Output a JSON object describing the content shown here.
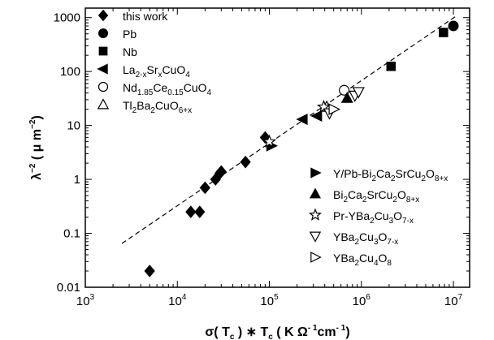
{
  "chart_data": {
    "type": "scatter",
    "xlabel": "σ(T_c) * T_c (KΩ^-1 cm^-1)",
    "ylabel": "λ^-2 (μm^-2)",
    "x_scale": "log",
    "y_scale": "log",
    "xlim": [
      1000,
      15000000
    ],
    "ylim": [
      0.01,
      1500
    ],
    "x_ticks": [
      1000,
      10000,
      100000,
      1000000,
      10000000
    ],
    "y_ticks": [
      0.01,
      0.1,
      1,
      10,
      100,
      1000
    ],
    "x_tick_labels": [
      {
        "base": "10",
        "exp": "3"
      },
      {
        "base": "10",
        "exp": "4"
      },
      {
        "base": "10",
        "exp": "5"
      },
      {
        "base": "10",
        "exp": "6"
      },
      {
        "base": "10",
        "exp": "7"
      }
    ],
    "y_tick_labels": [
      "0.01",
      "0.1",
      "1",
      "10",
      "100",
      "1000"
    ],
    "x_axis_title": [
      {
        "t": "σ( T"
      },
      {
        "t": "c",
        "s": "sub"
      },
      {
        "t": " ) ∗ T"
      },
      {
        "t": "c",
        "s": "sub"
      },
      {
        "t": "  ( K Ω"
      },
      {
        "t": "- 1",
        "s": "sup"
      },
      {
        "t": "cm"
      },
      {
        "t": "- 1",
        "s": "sup"
      },
      {
        "t": ")"
      }
    ],
    "y_axis_title": [
      {
        "t": "λ"
      },
      {
        "t": "−2",
        "s": "sup"
      },
      {
        "t": " ( μ m"
      },
      {
        "t": "−2",
        "s": "sup"
      },
      {
        "t": ")"
      }
    ],
    "fit_line": {
      "x": [
        2500,
        11000000
      ],
      "y": [
        0.065,
        1100
      ],
      "style": "dashed"
    },
    "legend_left": [
      {
        "marker": "diamond",
        "parts": [
          {
            "t": "this work"
          }
        ]
      },
      {
        "marker": "circle-filled",
        "parts": [
          {
            "t": "Pb"
          }
        ]
      },
      {
        "marker": "square-filled",
        "parts": [
          {
            "t": "Nb"
          }
        ]
      },
      {
        "marker": "tri-left-filled",
        "parts": [
          {
            "t": "La"
          },
          {
            "t": "2-x",
            "s": "sub"
          },
          {
            "t": "Sr"
          },
          {
            "t": "x",
            "s": "sub"
          },
          {
            "t": "CuO"
          },
          {
            "t": "4",
            "s": "sub"
          }
        ]
      },
      {
        "marker": "circle-open",
        "parts": [
          {
            "t": "Nd"
          },
          {
            "t": "1.85",
            "s": "sub"
          },
          {
            "t": "Ce"
          },
          {
            "t": "0.15",
            "s": "sub"
          },
          {
            "t": "CuO"
          },
          {
            "t": "4",
            "s": "sub"
          }
        ]
      },
      {
        "marker": "tri-up-open",
        "parts": [
          {
            "t": "Tl"
          },
          {
            "t": "2",
            "s": "sub"
          },
          {
            "t": "Ba"
          },
          {
            "t": "2",
            "s": "sub"
          },
          {
            "t": "CuO"
          },
          {
            "t": "6+x",
            "s": "sub"
          }
        ]
      }
    ],
    "legend_right": [
      {
        "marker": "tri-right-filled",
        "parts": [
          {
            "t": "Y/Pb-Bi"
          },
          {
            "t": "2",
            "s": "sub"
          },
          {
            "t": "Ca"
          },
          {
            "t": "2",
            "s": "sub"
          },
          {
            "t": "SrCu"
          },
          {
            "t": "2",
            "s": "sub"
          },
          {
            "t": "O"
          },
          {
            "t": "8+x",
            "s": "sub"
          }
        ]
      },
      {
        "marker": "tri-up-filled",
        "parts": [
          {
            "t": "Bi"
          },
          {
            "t": "2",
            "s": "sub"
          },
          {
            "t": "Ca"
          },
          {
            "t": "2",
            "s": "sub"
          },
          {
            "t": "SrCu"
          },
          {
            "t": "2",
            "s": "sub"
          },
          {
            "t": "O"
          },
          {
            "t": "8+x",
            "s": "sub"
          }
        ]
      },
      {
        "marker": "star-open",
        "parts": [
          {
            "t": "Pr-YBa"
          },
          {
            "t": "2",
            "s": "sub"
          },
          {
            "t": "Cu"
          },
          {
            "t": "3",
            "s": "sub"
          },
          {
            "t": "O"
          },
          {
            "t": "7-x",
            "s": "sub"
          }
        ]
      },
      {
        "marker": "tri-down-open",
        "parts": [
          {
            "t": "YBa"
          },
          {
            "t": "2",
            "s": "sub"
          },
          {
            "t": "Cu"
          },
          {
            "t": "3",
            "s": "sub"
          },
          {
            "t": "O"
          },
          {
            "t": "7-x",
            "s": "sub"
          }
        ]
      },
      {
        "marker": "tri-right-open",
        "parts": [
          {
            "t": "YBa"
          },
          {
            "t": "2",
            "s": "sub"
          },
          {
            "t": "Cu"
          },
          {
            "t": "4",
            "s": "sub"
          },
          {
            "t": "O"
          },
          {
            "t": "8",
            "s": "sub"
          }
        ]
      }
    ],
    "series": [
      {
        "name": "this work",
        "marker": "diamond",
        "points": [
          [
            5000,
            0.02
          ],
          [
            14000,
            0.25
          ],
          [
            17500,
            0.25
          ],
          [
            20000,
            0.7
          ],
          [
            26000,
            1.0
          ],
          [
            29000,
            1.3
          ],
          [
            30000,
            1.4
          ],
          [
            55000,
            2.1
          ],
          [
            90000,
            6.0
          ]
        ]
      },
      {
        "name": "Pb",
        "marker": "circle-filled",
        "points": [
          [
            10000000,
            700
          ]
        ]
      },
      {
        "name": "Nb",
        "marker": "square-filled",
        "points": [
          [
            2100000,
            125
          ],
          [
            7800000,
            530
          ]
        ]
      },
      {
        "name": "La2-xSrxCuO4",
        "marker": "tri-left-filled",
        "points": [
          [
            230000,
            13
          ],
          [
            330000,
            15
          ]
        ]
      },
      {
        "name": "Nd1.85Ce0.15CuO4",
        "marker": "circle-open",
        "points": [
          [
            650000,
            45
          ]
        ]
      },
      {
        "name": "Tl2Ba2CuO6+x",
        "marker": "tri-up-open",
        "points": [
          [
            420000,
            22
          ]
        ]
      },
      {
        "name": "Y/Pb-Bi2Ca2SrCu2O8+x",
        "marker": "tri-right-filled",
        "points": [
          [
            105000,
            4.2
          ]
        ]
      },
      {
        "name": "Bi2Ca2SrCu2O8+x",
        "marker": "tri-up-filled",
        "points": [
          [
            700000,
            32
          ]
        ]
      },
      {
        "name": "Pr-YBa2Cu3O7-x",
        "marker": "star-open",
        "points": [
          [
            100000,
            5.0
          ],
          [
            390000,
            22
          ]
        ]
      },
      {
        "name": "YBa2Cu3O7-x",
        "marker": "tri-down-open",
        "points": [
          [
            450000,
            17
          ],
          [
            850000,
            36
          ],
          [
            930000,
            42
          ]
        ]
      },
      {
        "name": "YBa2Cu4O8",
        "marker": "tri-right-open",
        "points": [
          [
            500000,
            20
          ]
        ]
      }
    ]
  }
}
